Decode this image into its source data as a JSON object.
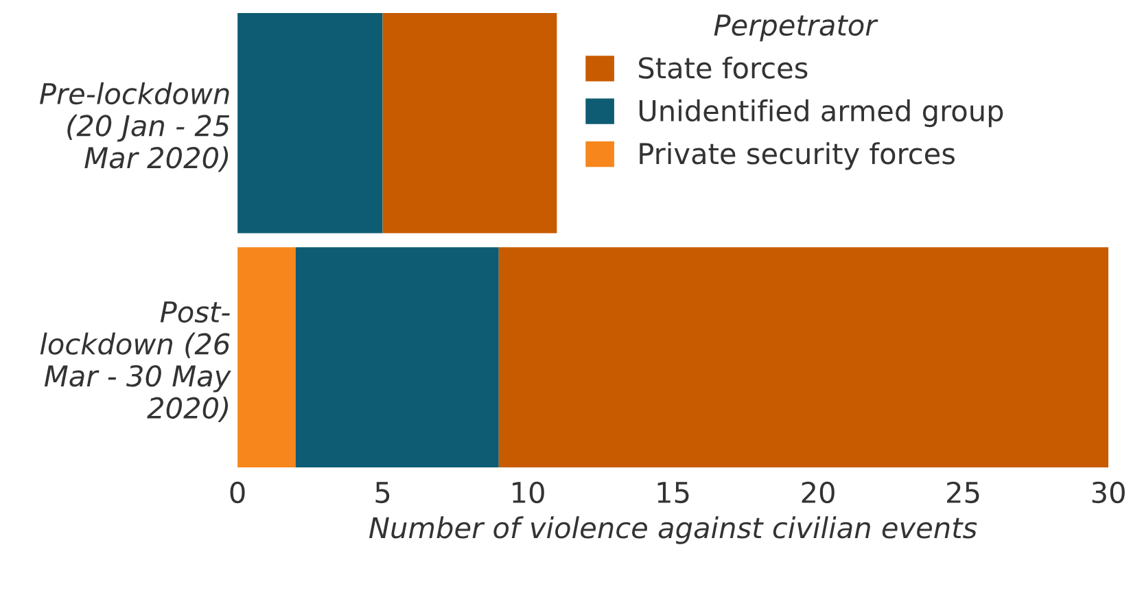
{
  "chart_data": {
    "type": "bar",
    "orientation": "horizontal",
    "stacked": true,
    "xlabel": "Number of violence against civilian events",
    "legend_title": "Perpetrator",
    "legend": "top right",
    "categories": [
      "Pre-lockdown\n(20 Jan - 25\nMar 2020)",
      "Post-\nlockdown (26\nMar - 30 May\n2020)"
    ],
    "series": [
      {
        "name": "Private security forces",
        "color": "#f7861c",
        "values": [
          0,
          2
        ]
      },
      {
        "name": "Unidentified armed group",
        "color": "#0e5c73",
        "values": [
          5,
          7
        ]
      },
      {
        "name": "State forces",
        "color": "#c85a00",
        "values": [
          6,
          21
        ]
      }
    ],
    "xlim": [
      0,
      30
    ],
    "xticks": [
      0,
      5,
      10,
      15,
      20,
      25,
      30
    ],
    "grid": false
  }
}
